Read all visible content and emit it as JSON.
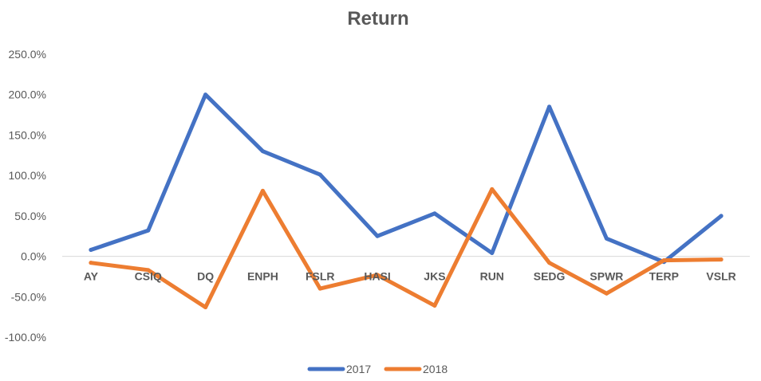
{
  "chart_data": {
    "type": "line",
    "title": "Return",
    "xlabel": "",
    "ylabel": "",
    "categories": [
      "AY",
      "CSIQ",
      "DQ",
      "ENPH",
      "FSLR",
      "HASI",
      "JKS",
      "RUN",
      "SEDG",
      "SPWR",
      "TERP",
      "VSLR"
    ],
    "series": [
      {
        "name": "2017",
        "color": "#4472C4",
        "values": [
          8,
          32,
          200,
          130,
          101,
          25,
          53,
          4,
          185,
          22,
          -7,
          50
        ]
      },
      {
        "name": "2018",
        "color": "#ED7D31",
        "values": [
          -8,
          -17,
          -63,
          81,
          -40,
          -23,
          -61,
          83,
          -8,
          -46,
          -5,
          -4
        ]
      }
    ],
    "yticks": [
      "250.0%",
      "200.0%",
      "150.0%",
      "100.0%",
      "50.0%",
      "0.0%",
      "-50.0%",
      "-100.0%"
    ],
    "ylim": [
      -100,
      250
    ],
    "grid": false,
    "legend": "bottom-center"
  }
}
